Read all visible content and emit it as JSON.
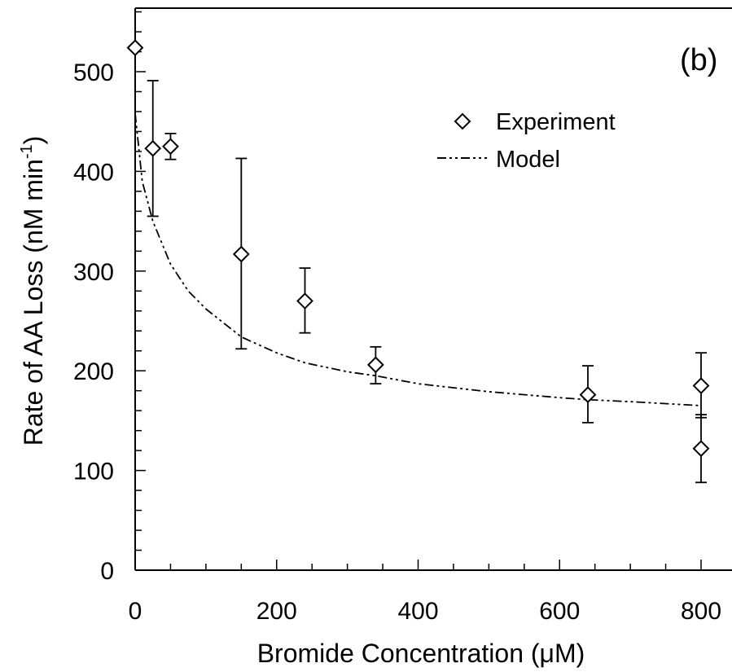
{
  "chart_data": {
    "type": "scatter",
    "panel_label": "(b)",
    "xlabel": "Bromide Concentration (μM)",
    "ylabel_main": "Rate of AA Loss (nM min",
    "ylabel_sup": "-1",
    "ylabel_close": ")",
    "xlim": [
      0,
      850
    ],
    "ylim": [
      0,
      560
    ],
    "xticks": [
      0,
      200,
      400,
      600,
      800
    ],
    "yticks": [
      0,
      100,
      200,
      300,
      400,
      500
    ],
    "x_minor_step": 50,
    "y_minor_step": 20,
    "legend": {
      "position": "top-right",
      "entries": [
        {
          "label": "Experiment",
          "marker": "diamond"
        },
        {
          "label": "Model",
          "line": "dash-dot-dot"
        }
      ]
    },
    "series": [
      {
        "name": "Experiment",
        "kind": "scatter",
        "marker": "diamond",
        "points": [
          {
            "x": 0,
            "y": 524,
            "err_low": null,
            "err_high": null
          },
          {
            "x": 25,
            "y": 423,
            "err_low": 355,
            "err_high": 491
          },
          {
            "x": 50,
            "y": 425,
            "err_low": 412,
            "err_high": 438
          },
          {
            "x": 150,
            "y": 317,
            "err_low": 222,
            "err_high": 413
          },
          {
            "x": 240,
            "y": 270,
            "err_low": 238,
            "err_high": 303
          },
          {
            "x": 340,
            "y": 206,
            "err_low": 187,
            "err_high": 224
          },
          {
            "x": 640,
            "y": 176,
            "err_low": 148,
            "err_high": 205
          },
          {
            "x": 800,
            "y": 185,
            "err_low": 153,
            "err_high": 218
          },
          {
            "x": 800,
            "y": 122,
            "err_low": 88,
            "err_high": 156
          }
        ]
      },
      {
        "name": "Model",
        "kind": "line",
        "style": "dash-dot-dot",
        "x": [
          0,
          10,
          25,
          50,
          75,
          100,
          150,
          200,
          240,
          300,
          340,
          400,
          500,
          600,
          640,
          700,
          800
        ],
        "y": [
          458,
          390,
          350,
          307,
          280,
          262,
          234,
          218,
          208,
          199,
          195,
          187,
          179,
          173,
          171,
          169,
          165
        ]
      }
    ]
  }
}
